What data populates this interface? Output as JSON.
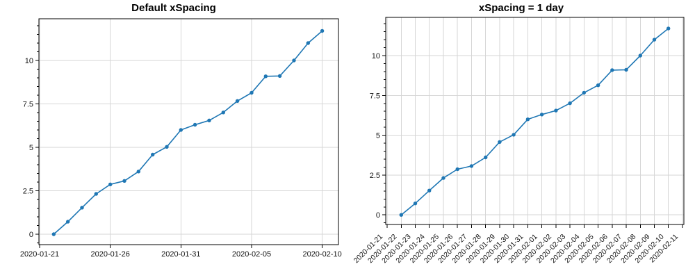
{
  "figure": {
    "background": "#ffffff"
  },
  "chart_data": [
    {
      "type": "line",
      "title": "Default xSpacing",
      "x_origin": "2020-01-21",
      "x": [
        "2020-01-22",
        "2020-01-23",
        "2020-01-24",
        "2020-01-25",
        "2020-01-26",
        "2020-01-27",
        "2020-01-28",
        "2020-01-29",
        "2020-01-30",
        "2020-01-31",
        "2020-02-01",
        "2020-02-02",
        "2020-02-03",
        "2020-02-04",
        "2020-02-05",
        "2020-02-06",
        "2020-02-07",
        "2020-02-08",
        "2020-02-09",
        "2020-02-10"
      ],
      "y": [
        0,
        0.72,
        1.53,
        2.32,
        2.87,
        3.07,
        3.61,
        4.58,
        5.03,
        6.0,
        6.3,
        6.55,
        7.01,
        7.67,
        8.14,
        9.09,
        9.11,
        10.0,
        11.0,
        11.7
      ],
      "x_tick_labels": [
        "2020-01-21",
        "2020-01-26",
        "2020-01-31",
        "2020-02-05",
        "2020-02-10"
      ],
      "x_tick_rotation": 0,
      "y_ticks": [
        0,
        2.5,
        5,
        7.5,
        10
      ],
      "y_tick_labels": [
        "0",
        "2.5",
        "5",
        "7.5",
        "10"
      ],
      "y_minor_step": 0.5,
      "xlim_days": [
        -0.05,
        21.15
      ],
      "ylim": [
        -0.6,
        12.4
      ],
      "grid": true,
      "legend": "none",
      "line_color": "#1f77b4",
      "marker_color": "#1f77b4",
      "grid_color": "#d6d6d6",
      "axis_color": "#000000",
      "text_color": "#111111"
    },
    {
      "type": "line",
      "title": "xSpacing = 1 day",
      "x_origin": "2020-01-21",
      "x": [
        "2020-01-22",
        "2020-01-23",
        "2020-01-24",
        "2020-01-25",
        "2020-01-26",
        "2020-01-27",
        "2020-01-28",
        "2020-01-29",
        "2020-01-30",
        "2020-01-31",
        "2020-02-01",
        "2020-02-02",
        "2020-02-03",
        "2020-02-04",
        "2020-02-05",
        "2020-02-06",
        "2020-02-07",
        "2020-02-08",
        "2020-02-09",
        "2020-02-10"
      ],
      "y": [
        0,
        0.72,
        1.53,
        2.32,
        2.87,
        3.07,
        3.61,
        4.58,
        5.03,
        6.0,
        6.3,
        6.55,
        7.01,
        7.67,
        8.14,
        9.09,
        9.11,
        10.0,
        11.0,
        11.7
      ],
      "x_tick_labels": [
        "2020-01-21",
        "2020-01-22",
        "2020-01-23",
        "2020-01-24",
        "2020-01-25",
        "2020-01-26",
        "2020-01-27",
        "2020-01-28",
        "2020-01-29",
        "2020-01-30",
        "2020-01-31",
        "2020-02-01",
        "2020-02-02",
        "2020-02-03",
        "2020-02-04",
        "2020-02-05",
        "2020-02-06",
        "2020-02-07",
        "2020-02-08",
        "2020-02-09",
        "2020-02-10",
        "2020-02-11"
      ],
      "x_tick_rotation": -45,
      "y_ticks": [
        0,
        2.5,
        5,
        7.5,
        10
      ],
      "y_tick_labels": [
        "0",
        "2.5",
        "5",
        "7.5",
        "10"
      ],
      "y_minor_step": 0.5,
      "xlim_days": [
        -0.1,
        21.1
      ],
      "ylim": [
        -0.6,
        12.4
      ],
      "grid": true,
      "legend": "none",
      "line_color": "#1f77b4",
      "marker_color": "#1f77b4",
      "grid_color": "#d6d6d6",
      "axis_color": "#000000",
      "text_color": "#111111"
    }
  ]
}
